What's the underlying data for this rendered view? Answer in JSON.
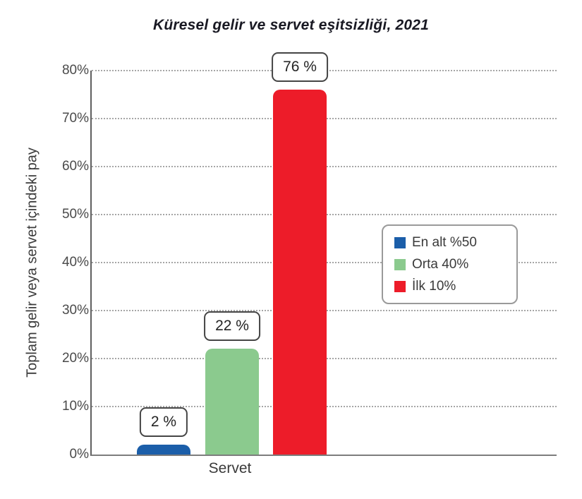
{
  "title": "Küresel gelir ve servet eşitsizliği, 2021",
  "chart_data": {
    "type": "bar",
    "title": "Küresel gelir ve servet eşitsizliği, 2021",
    "xlabel": "Servet",
    "ylabel": "Toplam gelir veya servet içindeki pay",
    "categories": [
      "Servet"
    ],
    "series": [
      {
        "name": "En alt %50",
        "values": [
          2
        ],
        "value_label": "2 %",
        "color": "#1b5ea9"
      },
      {
        "name": "Orta 40%",
        "values": [
          22
        ],
        "value_label": "22 %",
        "color": "#8bca8e"
      },
      {
        "name": "İlk 10%",
        "values": [
          76
        ],
        "value_label": "76 %",
        "color": "#ed1c29"
      }
    ],
    "ylim": [
      0,
      80
    ],
    "ytick_step": 10,
    "ytick_suffix": "%",
    "grid": "horizontal-dotted",
    "legend_position": "center-right"
  }
}
